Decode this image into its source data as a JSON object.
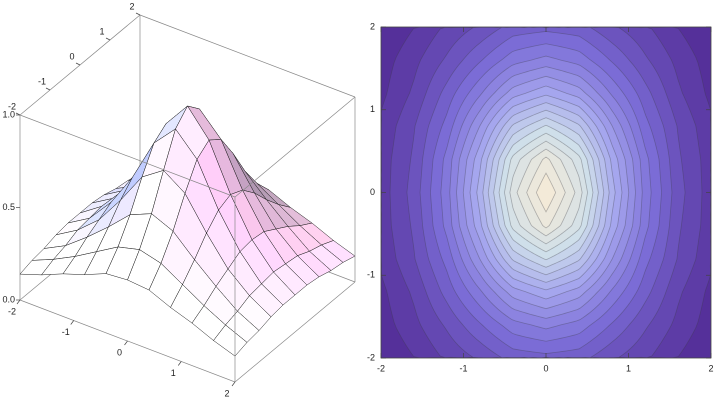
{
  "chart_data": [
    {
      "type": "surface",
      "x": [
        -2,
        -1.6,
        -1.2,
        -0.8,
        -0.4,
        0,
        0.4,
        0.8,
        1.2,
        1.6,
        2
      ],
      "y": [
        -2,
        -1.6,
        -1.2,
        -0.8,
        -0.4,
        0,
        0.4,
        0.8,
        1.2,
        1.6,
        2
      ],
      "z": [
        [
          0.14,
          0.18,
          0.23,
          0.27,
          0.32,
          0.33,
          0.32,
          0.27,
          0.23,
          0.18,
          0.14
        ],
        [
          0.16,
          0.21,
          0.27,
          0.34,
          0.41,
          0.44,
          0.41,
          0.34,
          0.27,
          0.21,
          0.16
        ],
        [
          0.17,
          0.23,
          0.32,
          0.42,
          0.53,
          0.58,
          0.53,
          0.42,
          0.32,
          0.23,
          0.17
        ],
        [
          0.19,
          0.26,
          0.36,
          0.51,
          0.68,
          0.76,
          0.68,
          0.51,
          0.36,
          0.26,
          0.19
        ],
        [
          0.2,
          0.27,
          0.4,
          0.58,
          0.81,
          0.93,
          0.81,
          0.58,
          0.4,
          0.27,
          0.2
        ],
        [
          0.2,
          0.28,
          0.41,
          0.61,
          0.86,
          1,
          0.86,
          0.61,
          0.41,
          0.28,
          0.2
        ],
        [
          0.2,
          0.27,
          0.4,
          0.58,
          0.81,
          0.93,
          0.81,
          0.58,
          0.4,
          0.27,
          0.2
        ],
        [
          0.19,
          0.26,
          0.36,
          0.51,
          0.68,
          0.76,
          0.68,
          0.51,
          0.36,
          0.26,
          0.19
        ],
        [
          0.17,
          0.23,
          0.32,
          0.42,
          0.53,
          0.58,
          0.53,
          0.42,
          0.32,
          0.23,
          0.17
        ],
        [
          0.16,
          0.21,
          0.27,
          0.34,
          0.41,
          0.44,
          0.41,
          0.34,
          0.27,
          0.21,
          0.16
        ],
        [
          0.14,
          0.18,
          0.23,
          0.27,
          0.32,
          0.33,
          0.32,
          0.27,
          0.23,
          0.18,
          0.14
        ]
      ],
      "xlim": [
        -2,
        2
      ],
      "ylim": [
        -2,
        2
      ],
      "zlim": [
        0,
        1
      ],
      "xticks": [
        -2,
        -1,
        0,
        1,
        2
      ],
      "yticks": [
        -2,
        -1,
        0,
        1,
        2
      ],
      "zticks": [
        {
          "value": 0,
          "label": "0.0"
        },
        0.5,
        {
          "value": 1,
          "label": "1.0"
        }
      ]
    },
    {
      "type": "contour",
      "x": [
        -2,
        -1.6,
        -1.2,
        -0.8,
        -0.4,
        0,
        0.4,
        0.8,
        1.2,
        1.6,
        2
      ],
      "y": [
        -2,
        -1.6,
        -1.2,
        -0.8,
        -0.4,
        0,
        0.4,
        0.8,
        1.2,
        1.6,
        2
      ],
      "z": [
        [
          0.14,
          0.18,
          0.23,
          0.27,
          0.32,
          0.33,
          0.32,
          0.27,
          0.23,
          0.18,
          0.14
        ],
        [
          0.16,
          0.21,
          0.27,
          0.34,
          0.41,
          0.44,
          0.41,
          0.34,
          0.27,
          0.21,
          0.16
        ],
        [
          0.17,
          0.23,
          0.32,
          0.42,
          0.53,
          0.58,
          0.53,
          0.42,
          0.32,
          0.23,
          0.17
        ],
        [
          0.19,
          0.26,
          0.36,
          0.51,
          0.68,
          0.76,
          0.68,
          0.51,
          0.36,
          0.26,
          0.19
        ],
        [
          0.2,
          0.27,
          0.4,
          0.58,
          0.81,
          0.93,
          0.81,
          0.58,
          0.4,
          0.27,
          0.2
        ],
        [
          0.2,
          0.28,
          0.41,
          0.61,
          0.86,
          1,
          0.86,
          0.61,
          0.41,
          0.28,
          0.2
        ],
        [
          0.2,
          0.27,
          0.4,
          0.58,
          0.81,
          0.93,
          0.81,
          0.58,
          0.4,
          0.27,
          0.2
        ],
        [
          0.19,
          0.26,
          0.36,
          0.51,
          0.68,
          0.76,
          0.68,
          0.51,
          0.36,
          0.26,
          0.19
        ],
        [
          0.17,
          0.23,
          0.32,
          0.42,
          0.53,
          0.58,
          0.53,
          0.42,
          0.32,
          0.23,
          0.17
        ],
        [
          0.16,
          0.21,
          0.27,
          0.34,
          0.41,
          0.44,
          0.41,
          0.34,
          0.27,
          0.21,
          0.16
        ],
        [
          0.14,
          0.18,
          0.23,
          0.27,
          0.32,
          0.33,
          0.32,
          0.27,
          0.23,
          0.18,
          0.14
        ]
      ],
      "xlim": [
        -2,
        2
      ],
      "ylim": [
        -2,
        2
      ],
      "xticks": [
        -2,
        -1,
        0,
        1,
        2
      ],
      "yticks": [
        -2,
        -1,
        0,
        1,
        2
      ],
      "contours": 20,
      "color_scale": [
        "#55309a",
        "#7b6cd6",
        "#a5a6ee",
        "#cfdfea",
        "#f3ead8"
      ]
    }
  ]
}
